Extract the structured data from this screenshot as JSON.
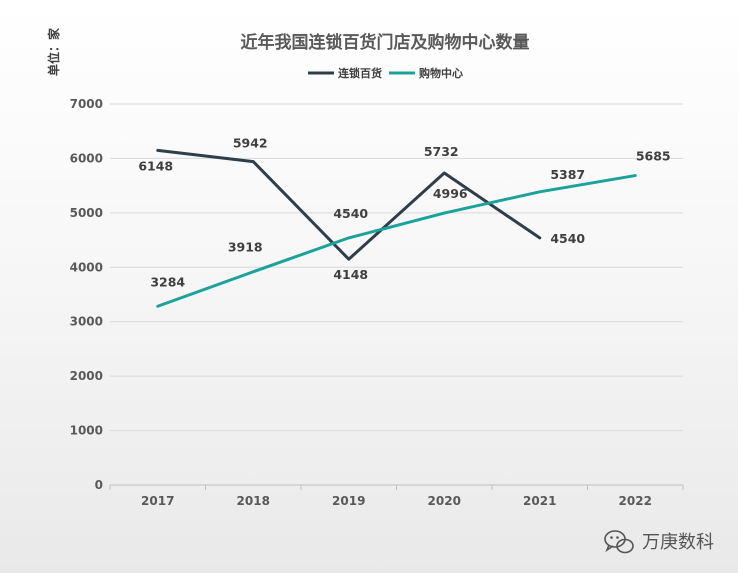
{
  "chart_data": {
    "type": "line",
    "title": "近年我国连锁百货门店及购物中心数量",
    "ylabel": "单位：家",
    "xlabel": "",
    "categories": [
      "2017",
      "2018",
      "2019",
      "2020",
      "2021",
      "2022"
    ],
    "ylim": [
      0,
      7000
    ],
    "yticks": [
      0,
      1000,
      2000,
      3000,
      4000,
      5000,
      6000,
      7000
    ],
    "grid": true,
    "legend_position": "top",
    "series": [
      {
        "name": "连锁百货",
        "color": "#2e3f4a",
        "values": [
          6148,
          5942,
          4148,
          5732,
          4540,
          null
        ]
      },
      {
        "name": "购物中心",
        "color": "#1aa39b",
        "values": [
          3284,
          3918,
          4540,
          4996,
          5387,
          5685
        ]
      }
    ]
  },
  "watermark": {
    "text": "万庚数科",
    "icon": "wechat-icon"
  }
}
